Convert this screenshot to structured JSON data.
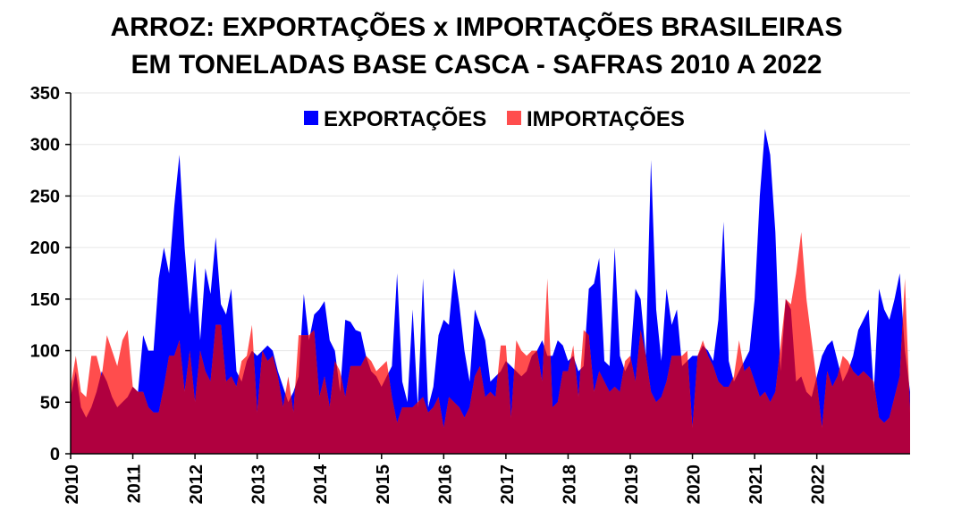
{
  "chart_data": {
    "type": "area",
    "title": "ARROZ: EXPORTAÇÕES x IMPORTAÇÕES BRASILEIRAS",
    "subtitle": "EM TONELADAS BASE CASCA - SAFRAS 2010 A 2022",
    "xlabel": "",
    "ylabel": "",
    "ylim": [
      0,
      350
    ],
    "yticks": [
      "0",
      "50",
      "100",
      "150",
      "200",
      "250",
      "300",
      "350"
    ],
    "xticks": [
      "2010",
      "2011",
      "2012",
      "2013",
      "2014",
      "2015",
      "2016",
      "2017",
      "2018",
      "2019",
      "2020",
      "2021",
      "2022"
    ],
    "x_start": "2010-01",
    "grid": true,
    "legend": "top-center",
    "colors": {
      "exports": "#0000ff",
      "imports": "#ff4d4d",
      "overlap": "#b0003f"
    },
    "series": [
      {
        "name": "EXPORTAÇÕES",
        "values": [
          55,
          80,
          45,
          35,
          45,
          60,
          80,
          70,
          55,
          45,
          50,
          55,
          65,
          60,
          115,
          100,
          100,
          170,
          200,
          175,
          240,
          290,
          200,
          135,
          190,
          110,
          180,
          155,
          210,
          145,
          135,
          160,
          80,
          70,
          90,
          100,
          95,
          100,
          105,
          100,
          80,
          65,
          50,
          60,
          75,
          155,
          110,
          135,
          140,
          148,
          110,
          100,
          60,
          130,
          128,
          120,
          118,
          95,
          80,
          75,
          65,
          75,
          85,
          175,
          70,
          50,
          140,
          45,
          170,
          45,
          65,
          115,
          130,
          125,
          180,
          145,
          100,
          70,
          140,
          125,
          110,
          70,
          75,
          80,
          90,
          85,
          80,
          75,
          80,
          95,
          100,
          110,
          95,
          95,
          110,
          105,
          90,
          95,
          80,
          85,
          160,
          165,
          190,
          90,
          85,
          200,
          95,
          80,
          90,
          160,
          150,
          95,
          285,
          140,
          90,
          160,
          125,
          140,
          85,
          90,
          95,
          95,
          105,
          100,
          90,
          130,
          225,
          90,
          70,
          80,
          90,
          100,
          150,
          250,
          315,
          290,
          215,
          80,
          150,
          140,
          70,
          75,
          60,
          55,
          75,
          95,
          105,
          110,
          90,
          70,
          80,
          95,
          120,
          130,
          140,
          60,
          160,
          140,
          130,
          150,
          175,
          100,
          60
        ]
      },
      {
        "name": "IMPORTAÇÕES",
        "values": [
          65,
          95,
          60,
          55,
          95,
          95,
          75,
          115,
          100,
          85,
          110,
          120,
          65,
          60,
          60,
          45,
          40,
          40,
          65,
          95,
          95,
          110,
          60,
          100,
          50,
          100,
          80,
          70,
          125,
          125,
          70,
          75,
          65,
          90,
          95,
          125,
          40,
          100,
          90,
          95,
          75,
          45,
          75,
          40,
          115,
          115,
          115,
          120,
          55,
          75,
          45,
          90,
          80,
          55,
          85,
          85,
          85,
          95,
          90,
          80,
          85,
          90,
          55,
          30,
          45,
          45,
          45,
          50,
          55,
          40,
          45,
          55,
          25,
          55,
          50,
          45,
          35,
          45,
          75,
          85,
          55,
          60,
          55,
          105,
          105,
          35,
          110,
          100,
          95,
          100,
          100,
          70,
          170,
          45,
          50,
          80,
          80,
          105,
          55,
          120,
          115,
          60,
          80,
          70,
          60,
          65,
          60,
          90,
          95,
          70,
          120,
          95,
          60,
          50,
          55,
          70,
          95,
          95,
          95,
          100,
          25,
          95,
          110,
          95,
          85,
          70,
          65,
          65,
          75,
          110,
          80,
          85,
          70,
          55,
          60,
          50,
          60,
          105,
          150,
          145,
          175,
          215,
          150,
          110,
          70,
          25,
          80,
          65,
          75,
          95,
          90,
          80,
          75,
          80,
          75,
          70,
          35,
          30,
          35,
          55,
          75,
          170,
          40
        ]
      }
    ]
  }
}
